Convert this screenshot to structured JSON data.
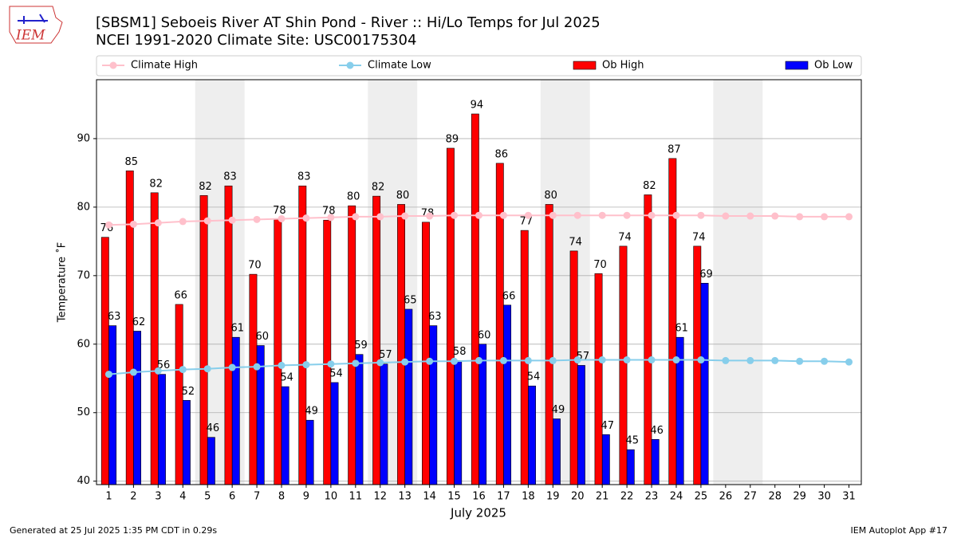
{
  "chart_data": {
    "type": "bar_line",
    "logo": "IEM",
    "title": "[SBSM1] Seboeis River  AT Shin Pond - River :: Hi/Lo Temps for Jul 2025",
    "subtitle": "NCEI 1991-2020 Climate Site: USC00175304",
    "ylabel": "Temperature ˚F",
    "xlabel": "July 2025",
    "footer_left": "Generated at 25 Jul 2025 1:35 PM CDT in 0.29s",
    "footer_right": "IEM Autoplot App #17",
    "x": [
      1,
      2,
      3,
      4,
      5,
      6,
      7,
      8,
      9,
      10,
      11,
      12,
      13,
      14,
      15,
      16,
      17,
      18,
      19,
      20,
      21,
      22,
      23,
      24,
      25,
      26,
      27,
      28,
      29,
      30,
      31
    ],
    "xlim": [
      0.5,
      31.5
    ],
    "ylim": [
      39.5,
      98.6
    ],
    "yticks": [
      40,
      50,
      60,
      70,
      80,
      90
    ],
    "grid": true,
    "series": [
      {
        "name": "Climate High",
        "kind": "line",
        "color": "#ffc0cb",
        "values": [
          77.4,
          77.5,
          77.7,
          77.9,
          78.0,
          78.1,
          78.2,
          78.3,
          78.4,
          78.5,
          78.6,
          78.6,
          78.7,
          78.7,
          78.8,
          78.8,
          78.8,
          78.8,
          78.8,
          78.8,
          78.8,
          78.8,
          78.8,
          78.8,
          78.8,
          78.7,
          78.7,
          78.7,
          78.6,
          78.6,
          78.6
        ]
      },
      {
        "name": "Climate Low",
        "kind": "line",
        "color": "#87ceeb",
        "values": [
          55.6,
          55.9,
          56.1,
          56.3,
          56.4,
          56.6,
          56.7,
          56.9,
          57.0,
          57.1,
          57.2,
          57.3,
          57.4,
          57.5,
          57.5,
          57.6,
          57.6,
          57.6,
          57.6,
          57.7,
          57.7,
          57.7,
          57.7,
          57.7,
          57.7,
          57.6,
          57.6,
          57.6,
          57.5,
          57.5,
          57.4
        ]
      },
      {
        "name": "Ob High",
        "kind": "bar",
        "color": "#ff0000",
        "values": [
          75.6,
          85.3,
          82.1,
          65.8,
          81.7,
          83.1,
          70.2,
          78.2,
          83.1,
          78.1,
          80.2,
          81.6,
          80.4,
          77.8,
          88.6,
          93.6,
          86.4,
          76.6,
          80.4,
          73.6,
          70.3,
          74.3,
          81.8,
          87.1,
          74.3,
          null,
          null,
          null,
          null,
          null,
          null
        ],
        "value_labels": [
          "76",
          "85",
          "82",
          "66",
          "82",
          "83",
          "70",
          "78",
          "83",
          "78",
          "80",
          "82",
          "80",
          "78",
          "89",
          "94",
          "86",
          "77",
          "80",
          "74",
          "70",
          "74",
          "82",
          "87",
          "74",
          null,
          null,
          null,
          null,
          null,
          null
        ]
      },
      {
        "name": "Ob Low",
        "kind": "bar",
        "color": "#0000ff",
        "values": [
          62.7,
          61.9,
          55.6,
          51.8,
          46.4,
          61.0,
          59.8,
          53.8,
          48.9,
          54.4,
          58.5,
          57.1,
          65.1,
          62.7,
          57.6,
          60.0,
          65.7,
          53.9,
          49.1,
          56.9,
          46.8,
          44.6,
          46.1,
          61.0,
          68.9,
          null,
          null,
          null,
          null,
          null,
          null
        ],
        "value_labels": [
          "63",
          "62",
          "56",
          "52",
          "46",
          "61",
          "60",
          "54",
          "49",
          "54",
          "59",
          "57",
          "65",
          "63",
          "58",
          "60",
          "66",
          "54",
          "49",
          "57",
          "47",
          "45",
          "46",
          "61",
          "69",
          null,
          null,
          null,
          null,
          null,
          null
        ]
      }
    ]
  }
}
